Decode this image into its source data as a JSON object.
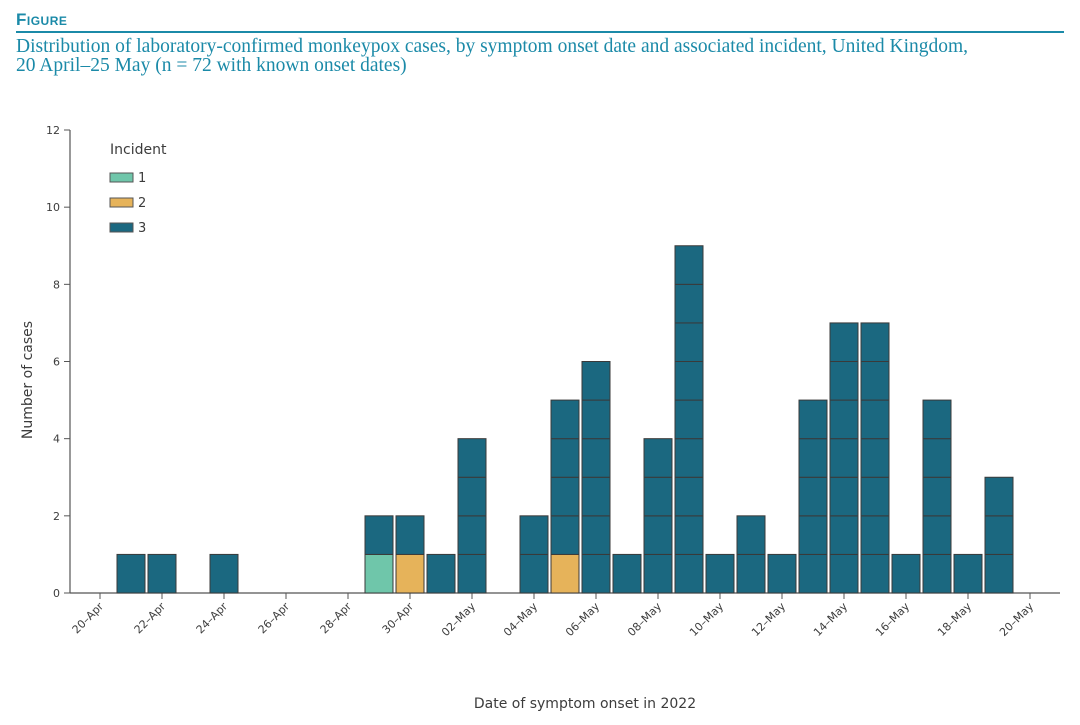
{
  "header": {
    "figure_label": "Figure",
    "title_line1": "Distribution of laboratory-confirmed monkeypox cases, by symptom onset date and associated incident, United Kingdom,",
    "title_line2": "20 April–25 May (n = 72 with known onset dates)"
  },
  "chart_data": {
    "type": "bar",
    "stacked": true,
    "xlabel": "Date of symptom onset in 2022",
    "ylabel": "Number of cases",
    "ylim": [
      0,
      12
    ],
    "yticks": [
      0,
      2,
      4,
      6,
      8,
      10,
      12
    ],
    "xtick_labels": [
      "20–Apr",
      "22–Apr",
      "24–Apr",
      "26–Apr",
      "28–Apr",
      "30–Apr",
      "02–May",
      "04–May",
      "06–May",
      "08–May",
      "10–May",
      "12–May",
      "14–May",
      "16–May",
      "18–May",
      "20–May"
    ],
    "legend": {
      "title": "Incident",
      "placement": "top-left"
    },
    "series": [
      {
        "name": "1",
        "color": "#6fc6aa",
        "values": [
          0,
          0,
          0,
          0,
          0,
          0,
          0,
          0,
          0,
          1,
          0,
          0,
          0,
          0,
          0,
          0,
          0,
          0,
          0,
          0,
          0,
          0,
          0,
          0,
          0,
          0,
          0,
          0,
          0,
          0,
          0
        ]
      },
      {
        "name": "2",
        "color": "#e6b35a",
        "values": [
          0,
          0,
          0,
          0,
          0,
          0,
          0,
          0,
          0,
          0,
          1,
          0,
          0,
          0,
          0,
          1,
          0,
          0,
          0,
          0,
          0,
          0,
          0,
          0,
          0,
          0,
          0,
          0,
          0,
          0,
          0
        ]
      },
      {
        "name": "3",
        "color": "#1b6880",
        "values": [
          0,
          1,
          1,
          0,
          1,
          0,
          0,
          0,
          0,
          1,
          1,
          1,
          4,
          0,
          2,
          4,
          6,
          1,
          4,
          9,
          1,
          2,
          1,
          5,
          7,
          7,
          1,
          5,
          1,
          3,
          0
        ]
      }
    ],
    "x_start": "20–Apr",
    "days": 31
  }
}
